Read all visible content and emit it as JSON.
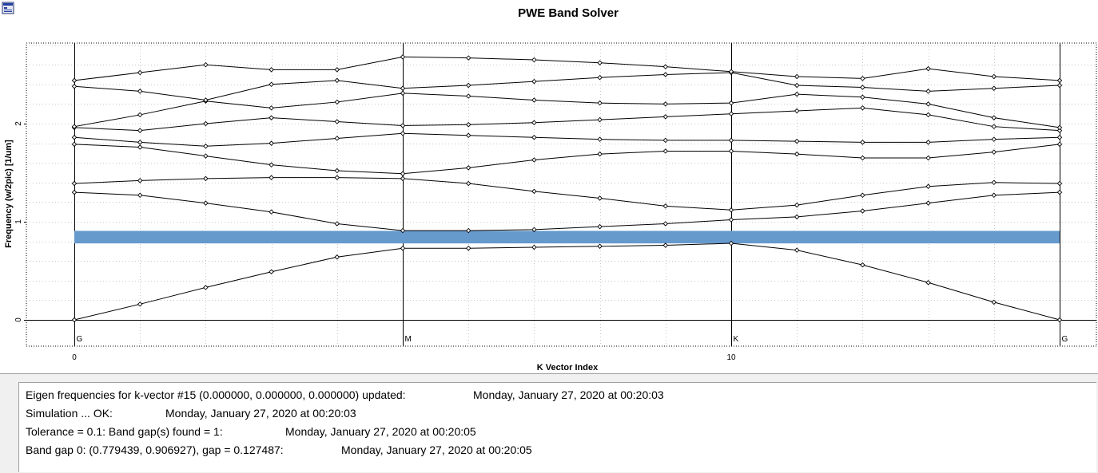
{
  "chart_data": {
    "type": "line",
    "title": "PWE Band Solver",
    "xlabel": "K Vector Index",
    "ylabel": "Frequency (w/2pic) [1/um]",
    "xlim": [
      0,
      15
    ],
    "ylim": [
      -0.25,
      2.8
    ],
    "x_ticks": [
      0,
      10
    ],
    "y_ticks": [
      0,
      1,
      2
    ],
    "symmetry_points": [
      {
        "label": "G",
        "x": 0
      },
      {
        "label": "M",
        "x": 5
      },
      {
        "label": "K",
        "x": 10
      },
      {
        "label": "G",
        "x": 15
      }
    ],
    "grid": true,
    "marker": "diamond",
    "x": [
      0,
      1,
      2,
      3,
      4,
      5,
      6,
      7,
      8,
      9,
      10,
      11,
      12,
      13,
      14,
      15
    ],
    "series": [
      {
        "values": [
          0.0,
          0.16,
          0.33,
          0.49,
          0.64,
          0.73,
          0.73,
          0.74,
          0.75,
          0.76,
          0.78,
          0.71,
          0.56,
          0.38,
          0.18,
          0.0
        ]
      },
      {
        "values": [
          1.3,
          1.27,
          1.19,
          1.1,
          0.98,
          0.91,
          0.91,
          0.92,
          0.95,
          0.98,
          1.02,
          1.05,
          1.11,
          1.19,
          1.27,
          1.3
        ]
      },
      {
        "values": [
          1.39,
          1.42,
          1.44,
          1.45,
          1.45,
          1.44,
          1.39,
          1.31,
          1.24,
          1.16,
          1.12,
          1.17,
          1.27,
          1.36,
          1.4,
          1.39
        ]
      },
      {
        "values": [
          1.79,
          1.76,
          1.67,
          1.58,
          1.52,
          1.49,
          1.55,
          1.63,
          1.69,
          1.72,
          1.72,
          1.69,
          1.65,
          1.65,
          1.71,
          1.79
        ]
      },
      {
        "values": [
          1.86,
          1.81,
          1.77,
          1.8,
          1.85,
          1.9,
          1.88,
          1.86,
          1.84,
          1.83,
          1.83,
          1.82,
          1.81,
          1.81,
          1.84,
          1.86
        ]
      },
      {
        "values": [
          1.96,
          1.93,
          2.0,
          2.06,
          2.02,
          1.98,
          1.99,
          2.01,
          2.04,
          2.07,
          2.1,
          2.13,
          2.16,
          2.09,
          1.97,
          1.93
        ]
      },
      {
        "values": [
          1.97,
          2.09,
          2.23,
          2.16,
          2.22,
          2.31,
          2.28,
          2.24,
          2.21,
          2.2,
          2.21,
          2.3,
          2.27,
          2.2,
          2.06,
          1.96
        ]
      },
      {
        "values": [
          2.38,
          2.33,
          2.24,
          2.4,
          2.44,
          2.36,
          2.39,
          2.43,
          2.47,
          2.5,
          2.52,
          2.39,
          2.37,
          2.33,
          2.36,
          2.39
        ]
      },
      {
        "values": [
          2.44,
          2.52,
          2.6,
          2.55,
          2.55,
          2.68,
          2.67,
          2.65,
          2.62,
          2.58,
          2.53,
          2.48,
          2.46,
          2.56,
          2.48,
          2.44
        ]
      }
    ],
    "band_gaps": [
      {
        "lower": 0.779439,
        "upper": 0.906927
      }
    ],
    "colors": {
      "line": "#000000",
      "band_gap": "#6699cc",
      "grid": "#c8c8c8"
    }
  },
  "log": {
    "lines": [
      {
        "message": "Eigen frequencies for k-vector #15 (0.000000, 0.000000, 0.000000) updated:",
        "time": "Monday, January 27, 2020 at 00:20:03"
      },
      {
        "message": "Simulation ... OK:",
        "time": "Monday, January 27, 2020 at 00:20:03"
      },
      {
        "message": "Tolerance = 0.1: Band gap(s) found = 1:",
        "time": "Monday, January 27, 2020 at 00:20:05"
      },
      {
        "message": "Band gap 0: (0.779439, 0.906927), gap = 0.127487:",
        "time": "Monday, January 27, 2020 at 00:20:05"
      }
    ]
  },
  "icons": {
    "app": "app-window-icon"
  }
}
